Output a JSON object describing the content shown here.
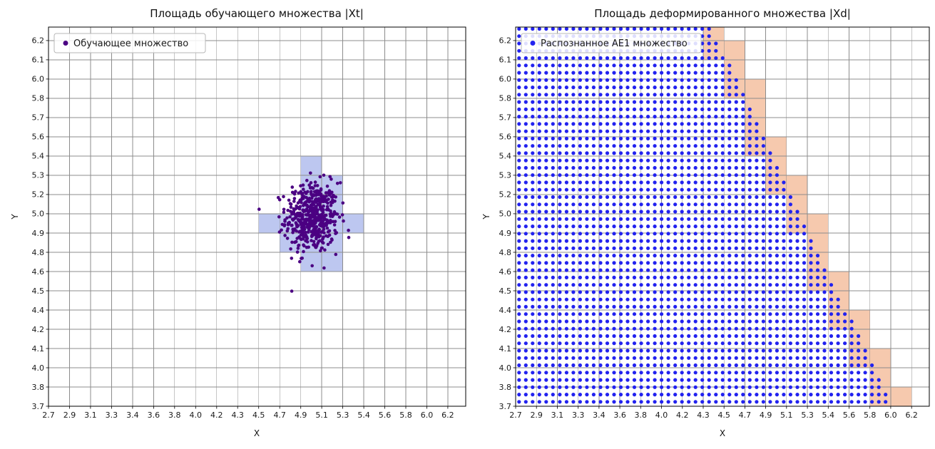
{
  "figure": {
    "background": "#ffffff",
    "grid_color": "#8c8c8c",
    "axis_color": "#000000",
    "tick_label_color": "#1a1a1a"
  },
  "chart_data": [
    {
      "id": "training-set",
      "type": "scatter",
      "title": "Площадь обучающего множества |Xt|",
      "xlabel": "X",
      "ylabel": "Y",
      "x_range": [
        2.7,
        6.2
      ],
      "y_range": [
        3.7,
        6.2
      ],
      "grid": true,
      "legend_position": "upper left",
      "x_tick_labels": [
        "2.7",
        "2.9",
        "3.1",
        "3.3",
        "3.4",
        "3.6",
        "3.8",
        "4.0",
        "4.2",
        "4.3",
        "4.5",
        "4.7",
        "4.9",
        "5.1",
        "5.3",
        "5.4",
        "5.6",
        "5.8",
        "6.0",
        "6.2"
      ],
      "y_tick_labels": [
        "3.7",
        "3.8",
        "4.0",
        "4.1",
        "4.2",
        "4.4",
        "4.5",
        "4.6",
        "4.8",
        "4.9",
        "5.0",
        "5.2",
        "5.3",
        "5.4",
        "5.6",
        "5.7",
        "5.8",
        "6.0",
        "6.1",
        "6.2"
      ],
      "legend": {
        "label": "Обучающее множество",
        "marker_color": "#4b0082"
      },
      "series": [
        {
          "name": "Обучающее множество",
          "marker": "circle",
          "color": "#4b0082",
          "marker_radius_px": 2.3,
          "distribution": {
            "kind": "gaussian",
            "center": [
              5.01,
              4.99
            ],
            "std": [
              0.115,
              0.12
            ],
            "n": 520,
            "seed": 12345
          }
        }
      ],
      "shaded_cells": {
        "color": "#bdc7f0",
        "cells": [
          [
            12,
            12
          ],
          [
            12,
            11
          ],
          [
            13,
            11
          ],
          [
            12,
            10
          ],
          [
            13,
            10
          ],
          [
            10,
            9
          ],
          [
            11,
            9
          ],
          [
            12,
            9
          ],
          [
            13,
            9
          ],
          [
            14,
            9
          ],
          [
            11,
            8
          ],
          [
            12,
            8
          ],
          [
            13,
            8
          ],
          [
            12,
            7
          ],
          [
            13,
            7
          ]
        ]
      }
    },
    {
      "id": "deformed-set",
      "type": "scatter",
      "title": "Площадь деформированного множества |Xd|",
      "xlabel": "X",
      "ylabel": "Y",
      "x_range": [
        2.7,
        6.2
      ],
      "y_range": [
        3.7,
        6.2
      ],
      "grid": true,
      "legend_position": "upper left",
      "x_tick_labels": [
        "2.7",
        "2.9",
        "3.1",
        "3.3",
        "3.4",
        "3.6",
        "3.8",
        "4.0",
        "4.2",
        "4.3",
        "4.5",
        "4.7",
        "4.9",
        "5.1",
        "5.3",
        "5.4",
        "5.6",
        "5.8",
        "6.0",
        "6.2"
      ],
      "y_tick_labels": [
        "3.7",
        "3.8",
        "4.0",
        "4.1",
        "4.2",
        "4.4",
        "4.5",
        "4.6",
        "4.8",
        "4.9",
        "5.0",
        "5.2",
        "5.3",
        "5.4",
        "5.6",
        "5.7",
        "5.8",
        "6.0",
        "6.1",
        "6.2"
      ],
      "legend": {
        "label": "Распознанное AE1 множество",
        "marker_color": "#2222ef"
      },
      "dot_grid": {
        "color": "#2222ef",
        "marker_radius_px": 2.6,
        "x_start": 2.73,
        "y_start": 3.73,
        "spacing_x": 0.06,
        "spacing_y": 0.05
      },
      "boundary": {
        "x_at_y_bottom": 6.03,
        "y_bottom": 3.7,
        "x_at_y_top": 4.43,
        "y_top": 6.29
      },
      "shaded_boundary_cells_color": "#f6c9ae"
    }
  ]
}
